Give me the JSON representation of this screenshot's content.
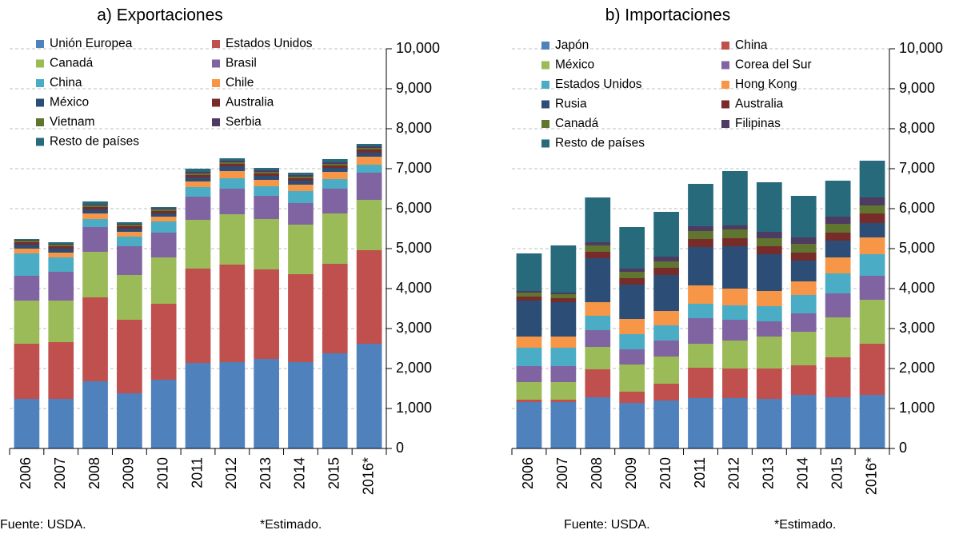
{
  "chart_data": [
    {
      "type": "bar",
      "stacked": true,
      "title": "a) Exportaciones",
      "categories": [
        "2006",
        "2007",
        "2008",
        "2009",
        "2010",
        "2011",
        "2012",
        "2013",
        "2014",
        "2015",
        "2016*"
      ],
      "series": [
        {
          "name": "Unión Europea",
          "color": "#4f81bd",
          "values": [
            1240,
            1240,
            1680,
            1380,
            1720,
            2140,
            2160,
            2240,
            2160,
            2380,
            2620
          ]
        },
        {
          "name": "Estados Unidos",
          "color": "#c0504d",
          "values": [
            1380,
            1420,
            2100,
            1840,
            1900,
            2360,
            2440,
            2240,
            2200,
            2240,
            2340
          ]
        },
        {
          "name": "Canadá",
          "color": "#9bbb59",
          "values": [
            1080,
            1040,
            1140,
            1120,
            1160,
            1220,
            1260,
            1260,
            1240,
            1260,
            1260
          ]
        },
        {
          "name": "Brasil",
          "color": "#8064a2",
          "values": [
            620,
            720,
            620,
            720,
            620,
            580,
            640,
            580,
            540,
            620,
            680
          ]
        },
        {
          "name": "China",
          "color": "#4bacc6",
          "values": [
            560,
            360,
            200,
            240,
            280,
            240,
            260,
            240,
            300,
            240,
            200
          ]
        },
        {
          "name": "Chile",
          "color": "#f79646",
          "values": [
            120,
            120,
            140,
            120,
            120,
            140,
            180,
            160,
            160,
            180,
            200
          ]
        },
        {
          "name": "México",
          "color": "#2c4d75",
          "values": [
            100,
            100,
            100,
            80,
            80,
            100,
            120,
            100,
            100,
            100,
            100
          ]
        },
        {
          "name": "Australia",
          "color": "#772c2a",
          "values": [
            60,
            60,
            60,
            60,
            60,
            60,
            60,
            60,
            60,
            60,
            80
          ]
        },
        {
          "name": "Vietnam",
          "color": "#5f7530",
          "values": [
            40,
            40,
            40,
            40,
            40,
            40,
            40,
            40,
            40,
            40,
            40
          ]
        },
        {
          "name": "Serbia",
          "color": "#4d3b62",
          "values": [
            20,
            20,
            20,
            20,
            20,
            40,
            40,
            40,
            40,
            40,
            40
          ]
        },
        {
          "name": "Resto de países",
          "color": "#276a7c",
          "values": [
            20,
            40,
            80,
            40,
            40,
            80,
            60,
            60,
            60,
            80,
            60
          ]
        }
      ],
      "ylim": [
        0,
        10000
      ],
      "yticks": [
        0,
        {
          "value": 1000,
          "label": "1,000"
        },
        {
          "value": 2000,
          "label": "2,000"
        },
        {
          "value": 3000,
          "label": "3,000"
        },
        {
          "value": 4000,
          "label": "4,000"
        },
        {
          "value": 5000,
          "label": "5,000"
        },
        {
          "value": 6000,
          "label": "6,000"
        },
        {
          "value": 7000,
          "label": "7,000"
        },
        {
          "value": 8000,
          "label": "8,000"
        },
        {
          "value": 9000,
          "label": "9,000"
        },
        {
          "value": 10000,
          "label": "10,000"
        }
      ],
      "grid": true,
      "source": "Fuente: USDA.",
      "note": "*Estimado."
    },
    {
      "type": "bar",
      "stacked": true,
      "title": "b) Importaciones",
      "categories": [
        "2006",
        "2007",
        "2008",
        "2009",
        "2010",
        "2011",
        "2012",
        "2013",
        "2014",
        "2015",
        "2016*"
      ],
      "series": [
        {
          "name": "Japón",
          "color": "#4f81bd",
          "values": [
            1160,
            1160,
            1280,
            1140,
            1200,
            1260,
            1260,
            1240,
            1340,
            1280,
            1340
          ]
        },
        {
          "name": "China",
          "color": "#c0504d",
          "values": [
            60,
            60,
            700,
            280,
            420,
            760,
            740,
            760,
            740,
            1000,
            1280
          ]
        },
        {
          "name": "México",
          "color": "#9bbb59",
          "values": [
            440,
            440,
            560,
            680,
            680,
            600,
            700,
            800,
            840,
            1000,
            1100
          ]
        },
        {
          "name": "Corea del Sur",
          "color": "#8064a2",
          "values": [
            400,
            400,
            420,
            380,
            400,
            640,
            520,
            380,
            460,
            600,
            600
          ]
        },
        {
          "name": "Estados Unidos",
          "color": "#4bacc6",
          "values": [
            460,
            460,
            360,
            380,
            380,
            360,
            360,
            380,
            460,
            500,
            540
          ]
        },
        {
          "name": "Hong Kong",
          "color": "#f79646",
          "values": [
            280,
            280,
            340,
            380,
            360,
            460,
            420,
            380,
            340,
            400,
            420
          ]
        },
        {
          "name": "Rusia",
          "color": "#2c4d75",
          "values": [
            900,
            860,
            1100,
            860,
            900,
            960,
            1060,
            920,
            520,
            420,
            360
          ]
        },
        {
          "name": "Australia",
          "color": "#772c2a",
          "values": [
            100,
            100,
            160,
            160,
            180,
            200,
            200,
            200,
            200,
            200,
            240
          ]
        },
        {
          "name": "Canadá",
          "color": "#5f7530",
          "values": [
            100,
            100,
            160,
            160,
            160,
            200,
            220,
            200,
            220,
            220,
            200
          ]
        },
        {
          "name": "Filipinas",
          "color": "#4d3b62",
          "values": [
            40,
            40,
            80,
            80,
            120,
            120,
            100,
            160,
            160,
            180,
            200
          ]
        },
        {
          "name": "Resto de países",
          "color": "#276a7c",
          "values": [
            940,
            1180,
            1120,
            1040,
            1120,
            1060,
            1360,
            1240,
            1040,
            900,
            920
          ]
        }
      ],
      "ylim": [
        0,
        10000
      ],
      "yticks": [
        0,
        {
          "value": 1000,
          "label": "1,000"
        },
        {
          "value": 2000,
          "label": "2,000"
        },
        {
          "value": 3000,
          "label": "3,000"
        },
        {
          "value": 4000,
          "label": "4,000"
        },
        {
          "value": 5000,
          "label": "5,000"
        },
        {
          "value": 6000,
          "label": "6,000"
        },
        {
          "value": 7000,
          "label": "7,000"
        },
        {
          "value": 8000,
          "label": "8,000"
        },
        {
          "value": 9000,
          "label": "9,000"
        },
        {
          "value": 10000,
          "label": "10,000"
        }
      ],
      "grid": true,
      "source": "Fuente: USDA.",
      "note": "*Estimado."
    }
  ]
}
